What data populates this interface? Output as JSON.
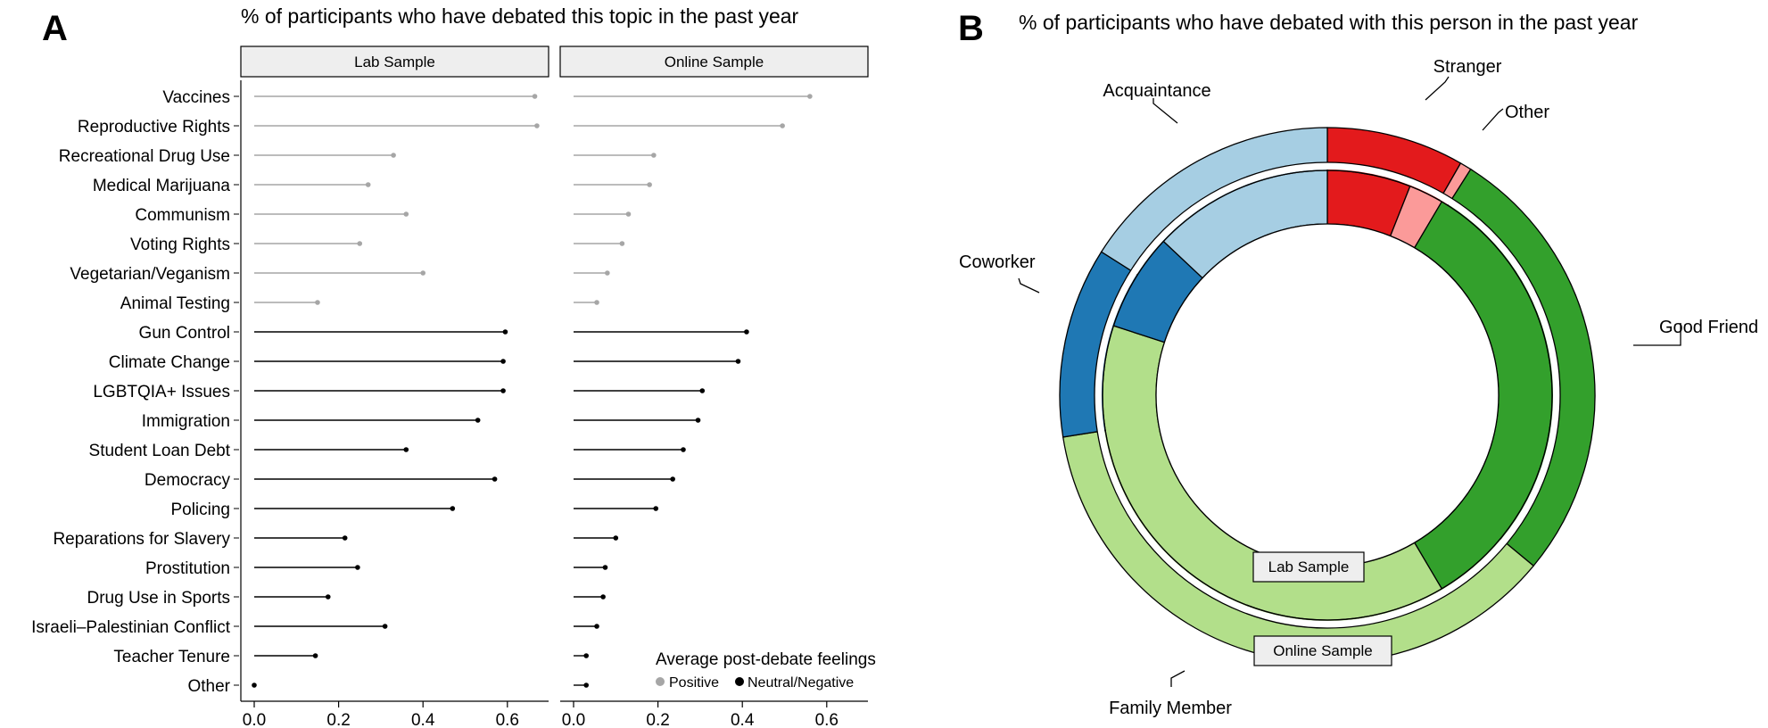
{
  "panel_a": {
    "letter": "A",
    "title": "% of participants who have debated this topic in the past year",
    "legend": {
      "title": "Average post-debate feelings",
      "positive": "Positive",
      "negative": "Neutral/Negative"
    }
  },
  "panel_b": {
    "letter": "B",
    "title": "% of participants who have debated with this person in the past year"
  },
  "chart_data": [
    {
      "type": "lollipop",
      "title": "% of participants who have debated this topic in the past year",
      "facets": [
        "Lab Sample",
        "Online Sample"
      ],
      "xlim": [
        0,
        0.7
      ],
      "xticks": [
        "0.0",
        "0.2",
        "0.4",
        "0.6"
      ],
      "categories": [
        "Vaccines",
        "Reproductive Rights",
        "Recreational Drug Use",
        "Medical Marijuana",
        "Communism",
        "Voting Rights",
        "Vegetarian/Veganism",
        "Animal Testing",
        "Gun Control",
        "Climate Change",
        "LGBTQIA+ Issues",
        "Immigration",
        "Student Loan Debt",
        "Democracy",
        "Policing",
        "Reparations for Slavery",
        "Prostitution",
        "Drug Use in Sports",
        "Israeli–Palestinian Conflict",
        "Teacher Tenure",
        "Other"
      ],
      "feeling": [
        "Positive",
        "Positive",
        "Positive",
        "Positive",
        "Positive",
        "Positive",
        "Positive",
        "Positive",
        "Neutral/Negative",
        "Neutral/Negative",
        "Neutral/Negative",
        "Neutral/Negative",
        "Neutral/Negative",
        "Neutral/Negative",
        "Neutral/Negative",
        "Neutral/Negative",
        "Neutral/Negative",
        "Neutral/Negative",
        "Neutral/Negative",
        "Neutral/Negative",
        "Neutral/Negative"
      ],
      "series": [
        {
          "name": "Lab Sample",
          "values": [
            0.665,
            0.67,
            0.33,
            0.27,
            0.36,
            0.25,
            0.4,
            0.15,
            0.595,
            0.59,
            0.59,
            0.53,
            0.36,
            0.57,
            0.47,
            0.215,
            0.245,
            0.175,
            0.31,
            0.145,
            0.0
          ]
        },
        {
          "name": "Online Sample",
          "values": [
            0.56,
            0.495,
            0.19,
            0.18,
            0.13,
            0.115,
            0.08,
            0.055,
            0.41,
            0.39,
            0.305,
            0.295,
            0.26,
            0.235,
            0.195,
            0.1,
            0.075,
            0.07,
            0.055,
            0.03,
            0.03
          ]
        }
      ],
      "colors": {
        "Positive": "#a6a6a6",
        "Neutral/Negative": "#000000"
      }
    },
    {
      "type": "pie",
      "subtype": "nested-donut",
      "title": "% of participants who have debated with this person in the past year",
      "categories": [
        "Stranger",
        "Other",
        "Good Friend",
        "Family Member",
        "Coworker",
        "Acquaintance"
      ],
      "colors": [
        "#e31a1c",
        "#fb9a99",
        "#33a02c",
        "#b2df8a",
        "#1f78b4",
        "#a6cee3"
      ],
      "series": [
        {
          "name": "Lab Sample",
          "ring": "inner",
          "values": [
            0.06,
            0.025,
            0.33,
            0.385,
            0.07,
            0.13
          ]
        },
        {
          "name": "Online Sample",
          "ring": "outer",
          "values": [
            0.083,
            0.007,
            0.27,
            0.365,
            0.115,
            0.16
          ]
        }
      ],
      "outer_labels": [
        "Stranger",
        "Other",
        "Good Friend",
        "Family Member",
        "Coworker",
        "Acquaintance"
      ]
    }
  ]
}
